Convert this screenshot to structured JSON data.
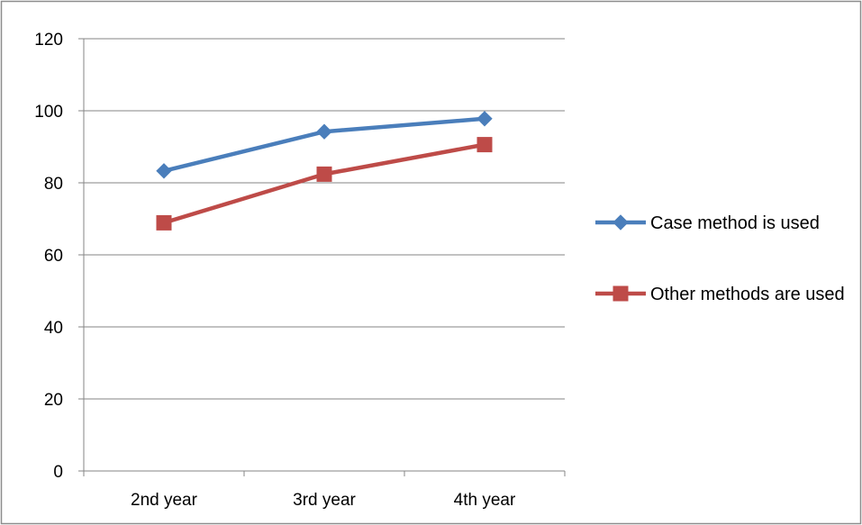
{
  "chart_data": {
    "type": "line",
    "categories": [
      "2nd year",
      "3rd year",
      "4th year"
    ],
    "series": [
      {
        "name": "Case method is used",
        "values": [
          83.3,
          94.2,
          97.8
        ],
        "color": "#4a7ebb",
        "marker": "diamond"
      },
      {
        "name": "Other methods are used",
        "values": [
          68.9,
          82.4,
          90.6
        ],
        "color": "#be4b48",
        "marker": "square"
      }
    ],
    "title": "",
    "xlabel": "",
    "ylabel": "",
    "ylim": [
      0,
      120
    ],
    "yticks": [
      "0",
      "20",
      "40",
      "60",
      "80",
      "100",
      "120"
    ],
    "grid": true,
    "legend_position": "right"
  }
}
